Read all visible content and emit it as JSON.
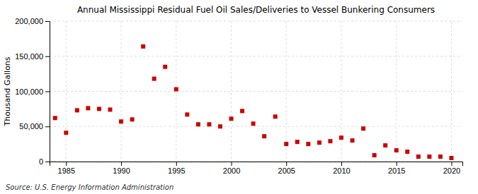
{
  "chart_data": {
    "type": "scatter",
    "title": "Annual Mississippi Residual Fuel Oil Sales/Deliveries to Vessel Bunkering Consumers",
    "ylabel": "Thousand Gallons",
    "source": "Source: U.S. Energy Information Administration",
    "x": [
      1984,
      1985,
      1986,
      1987,
      1988,
      1989,
      1990,
      1991,
      1992,
      1993,
      1994,
      1995,
      1996,
      1997,
      1998,
      1999,
      2000,
      2001,
      2002,
      2003,
      2004,
      2005,
      2006,
      2007,
      2008,
      2009,
      2010,
      2011,
      2012,
      2013,
      2014,
      2015,
      2016,
      2017,
      2018,
      2019,
      2020
    ],
    "values": [
      62000,
      41000,
      73000,
      76000,
      75000,
      74000,
      57000,
      60000,
      164000,
      118000,
      135000,
      103000,
      67000,
      53000,
      53000,
      50000,
      61000,
      72000,
      54000,
      36000,
      64000,
      25000,
      28000,
      25000,
      27000,
      29000,
      34000,
      30000,
      47000,
      9000,
      23000,
      16000,
      14000,
      7000,
      7000,
      7000,
      5000
    ],
    "color": "#cc0000",
    "marker": "square",
    "xlim": [
      1983.5,
      2021
    ],
    "xticks": [
      1985,
      1990,
      1995,
      2000,
      2005,
      2010,
      2015,
      2020
    ],
    "ylim": [
      0,
      200000
    ],
    "yticks": [
      0,
      {
        "value": 50000,
        "label": "50,000"
      },
      {
        "value": 100000,
        "label": "100,000"
      },
      {
        "value": 150000,
        "label": "150,000"
      },
      {
        "value": 200000,
        "label": "200,000"
      }
    ],
    "grid": true
  }
}
